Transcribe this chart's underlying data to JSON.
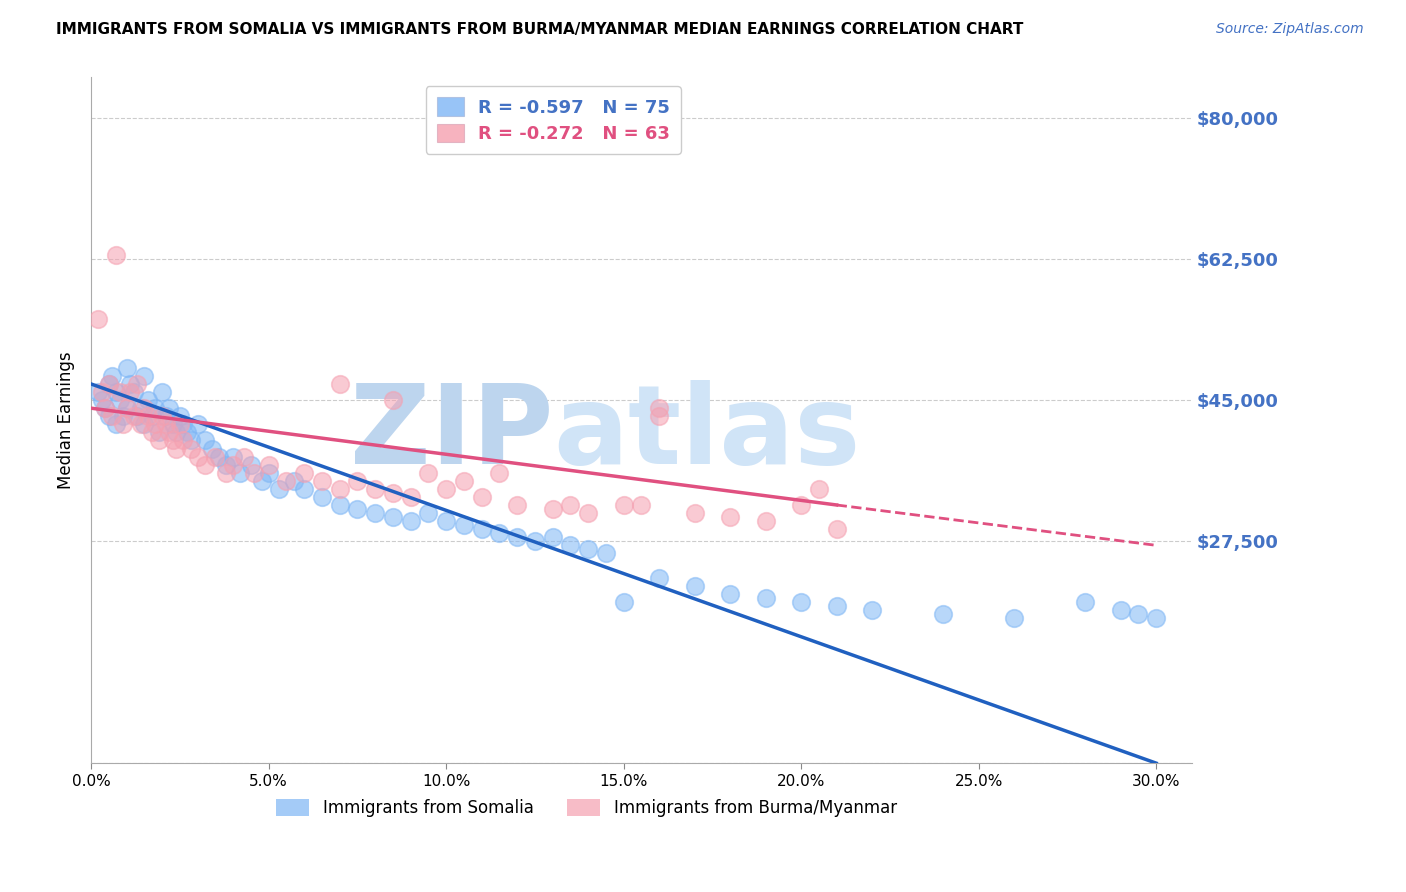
{
  "title": "IMMIGRANTS FROM SOMALIA VS IMMIGRANTS FROM BURMA/MYANMAR MEDIAN EARNINGS CORRELATION CHART",
  "source": "Source: ZipAtlas.com",
  "ylabel": "Median Earnings",
  "xlabel_vals": [
    0.0,
    5.0,
    10.0,
    15.0,
    20.0,
    25.0,
    30.0
  ],
  "yticks": [
    0,
    27500,
    45000,
    62500,
    80000
  ],
  "ytick_labels": [
    "",
    "$27,500",
    "$45,000",
    "$62,500",
    "$80,000"
  ],
  "ylim": [
    0,
    85000
  ],
  "xlim": [
    0.0,
    31.0
  ],
  "r_somalia": -0.597,
  "n_somalia": 75,
  "r_burma": -0.272,
  "n_burma": 63,
  "color_somalia": "#7EB6F5",
  "color_burma": "#F5A0B0",
  "line_somalia": "#2060C0",
  "line_burma": "#E05080",
  "color_ytick": "#4472C4",
  "watermark": "ZIPatlas",
  "watermark_color": "#D0E4F7",
  "somalia_x": [
    0.2,
    0.3,
    0.4,
    0.5,
    0.5,
    0.6,
    0.7,
    0.7,
    0.8,
    0.9,
    1.0,
    1.0,
    1.1,
    1.2,
    1.3,
    1.4,
    1.5,
    1.5,
    1.6,
    1.7,
    1.8,
    1.9,
    2.0,
    2.1,
    2.2,
    2.3,
    2.4,
    2.5,
    2.6,
    2.7,
    2.8,
    3.0,
    3.2,
    3.4,
    3.6,
    3.8,
    4.0,
    4.2,
    4.5,
    4.8,
    5.0,
    5.3,
    5.7,
    6.0,
    6.5,
    7.0,
    7.5,
    8.0,
    8.5,
    9.0,
    9.5,
    10.0,
    10.5,
    11.0,
    11.5,
    12.0,
    12.5,
    13.0,
    13.5,
    14.0,
    14.5,
    15.0,
    16.0,
    17.0,
    18.0,
    19.0,
    20.0,
    21.0,
    22.0,
    24.0,
    26.0,
    28.0,
    29.0,
    29.5,
    30.0
  ],
  "somalia_y": [
    46000,
    45000,
    44000,
    47000,
    43000,
    48000,
    46000,
    42000,
    45000,
    43000,
    49000,
    44000,
    47000,
    46000,
    43000,
    44000,
    48000,
    42000,
    45000,
    43000,
    44000,
    41000,
    46000,
    43000,
    44000,
    42000,
    41000,
    43000,
    42000,
    41000,
    40000,
    42000,
    40000,
    39000,
    38000,
    37000,
    38000,
    36000,
    37000,
    35000,
    36000,
    34000,
    35000,
    34000,
    33000,
    32000,
    31500,
    31000,
    30500,
    30000,
    31000,
    30000,
    29500,
    29000,
    28500,
    28000,
    27500,
    28000,
    27000,
    26500,
    26000,
    20000,
    23000,
    22000,
    21000,
    20500,
    20000,
    19500,
    19000,
    18500,
    18000,
    20000,
    19000,
    18500,
    18000
  ],
  "burma_x": [
    0.2,
    0.3,
    0.4,
    0.5,
    0.6,
    0.7,
    0.8,
    0.9,
    1.0,
    1.1,
    1.2,
    1.3,
    1.4,
    1.5,
    1.6,
    1.7,
    1.8,
    1.9,
    2.0,
    2.1,
    2.2,
    2.3,
    2.4,
    2.5,
    2.6,
    2.8,
    3.0,
    3.2,
    3.5,
    3.8,
    4.0,
    4.3,
    4.6,
    5.0,
    5.5,
    6.0,
    6.5,
    7.0,
    7.5,
    8.0,
    8.5,
    9.0,
    10.0,
    11.0,
    12.0,
    13.0,
    14.0,
    15.0,
    16.0,
    17.0,
    18.0,
    19.0,
    20.0,
    21.0,
    7.0,
    8.5,
    9.5,
    10.5,
    11.5,
    13.5,
    15.5,
    16.0,
    20.5
  ],
  "burma_y": [
    55000,
    46000,
    44000,
    47000,
    43000,
    63000,
    46000,
    42000,
    44000,
    46000,
    43000,
    47000,
    42000,
    44000,
    43000,
    41000,
    42000,
    40000,
    43000,
    42000,
    41000,
    40000,
    39000,
    42000,
    40000,
    39000,
    38000,
    37000,
    38000,
    36000,
    37000,
    38000,
    36000,
    37000,
    35000,
    36000,
    35000,
    34000,
    35000,
    34000,
    33500,
    33000,
    34000,
    33000,
    32000,
    31500,
    31000,
    32000,
    43000,
    31000,
    30500,
    30000,
    32000,
    29000,
    47000,
    45000,
    36000,
    35000,
    36000,
    32000,
    32000,
    44000,
    34000
  ],
  "som_line_x0": 0,
  "som_line_y0": 47000,
  "som_line_x1": 30,
  "som_line_y1": 0,
  "bur_line_x0": 0,
  "bur_line_y0": 44000,
  "bur_line_x1": 21,
  "bur_line_y1": 32000,
  "bur_dash_x0": 21,
  "bur_dash_y0": 32000,
  "bur_dash_x1": 30,
  "bur_dash_y1": 27000
}
